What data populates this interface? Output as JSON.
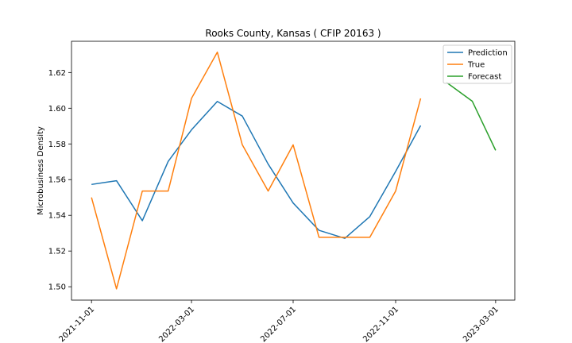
{
  "chart_data": {
    "type": "line",
    "title": "Rooks County, Kansas ( CFIP 20163 )",
    "xlabel": "",
    "ylabel": "Microbusiness Density",
    "x_ticks": [
      "2021-11-01",
      "2022-03-01",
      "2022-07-01",
      "2022-11-01",
      "2023-03-01"
    ],
    "y_ticks": [
      "1.50",
      "1.52",
      "1.54",
      "1.56",
      "1.58",
      "1.60",
      "1.62"
    ],
    "ylim": [
      1.4925,
      1.6375
    ],
    "xlim": [
      "2021-10-08",
      "2023-03-24"
    ],
    "grid": false,
    "legend_position": "top-right",
    "series": [
      {
        "name": "Prediction",
        "color": "#1f77b4",
        "x": [
          "2021-11-01",
          "2021-12-01",
          "2022-01-01",
          "2022-02-01",
          "2022-03-01",
          "2022-04-01",
          "2022-05-01",
          "2022-06-01",
          "2022-07-01",
          "2022-08-01",
          "2022-09-01",
          "2022-10-01",
          "2022-11-01",
          "2022-12-01"
        ],
        "values": [
          1.5573,
          1.5594,
          1.537,
          1.5702,
          1.5879,
          1.6038,
          1.5956,
          1.5687,
          1.5469,
          1.5316,
          1.5271,
          1.5393,
          1.5646,
          1.5903
        ]
      },
      {
        "name": "True",
        "color": "#ff7f0e",
        "x": [
          "2021-11-01",
          "2021-12-01",
          "2022-01-01",
          "2022-02-01",
          "2022-03-01",
          "2022-04-01",
          "2022-05-01",
          "2022-06-01",
          "2022-07-01",
          "2022-08-01",
          "2022-09-01",
          "2022-10-01",
          "2022-11-01",
          "2022-12-01"
        ],
        "values": [
          1.55,
          1.4988,
          1.5536,
          1.5536,
          1.6055,
          1.6314,
          1.5795,
          1.5536,
          1.5795,
          1.5277,
          1.5277,
          1.5277,
          1.5536,
          1.6055
        ]
      },
      {
        "name": "Forecast",
        "color": "#2ca02c",
        "x": [
          "2023-01-01",
          "2023-02-01",
          "2023-03-01"
        ],
        "values": [
          1.6145,
          1.6039,
          1.5764
        ]
      }
    ]
  }
}
